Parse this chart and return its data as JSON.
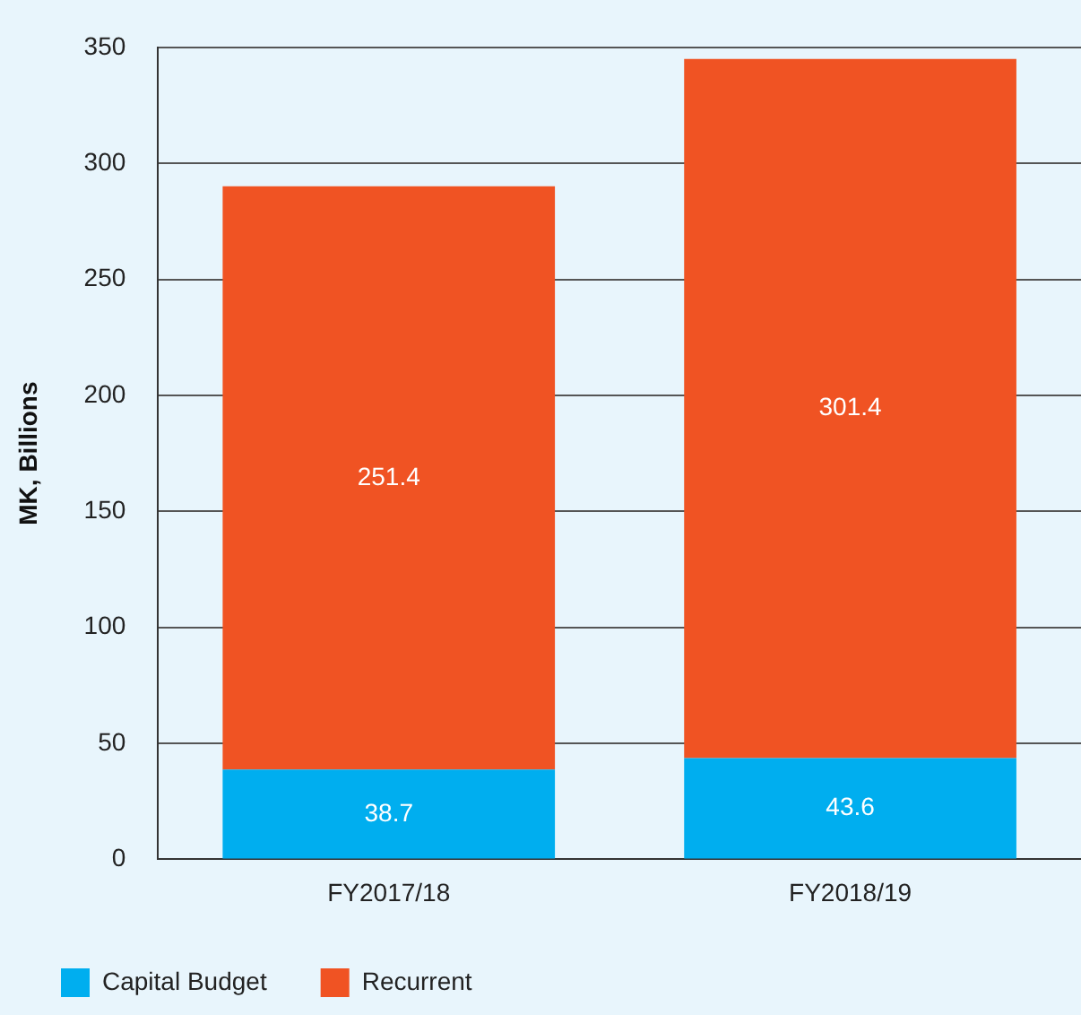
{
  "chart_data": {
    "type": "bar",
    "stacked": true,
    "ylabel": "MK, Billions",
    "categories": [
      "FY2017/18",
      "FY2018/19"
    ],
    "series": [
      {
        "name": "Capital Budget",
        "color": "#00aeef",
        "values": [
          38.7,
          43.6
        ]
      },
      {
        "name": "Recurrent",
        "color": "#f05323",
        "values": [
          251.4,
          301.4
        ]
      }
    ],
    "ylim": [
      0,
      350
    ],
    "yticks": [
      0,
      50,
      100,
      150,
      200,
      250,
      300,
      350
    ],
    "grid": "y",
    "legend": "bottom left",
    "data_labels": true
  }
}
